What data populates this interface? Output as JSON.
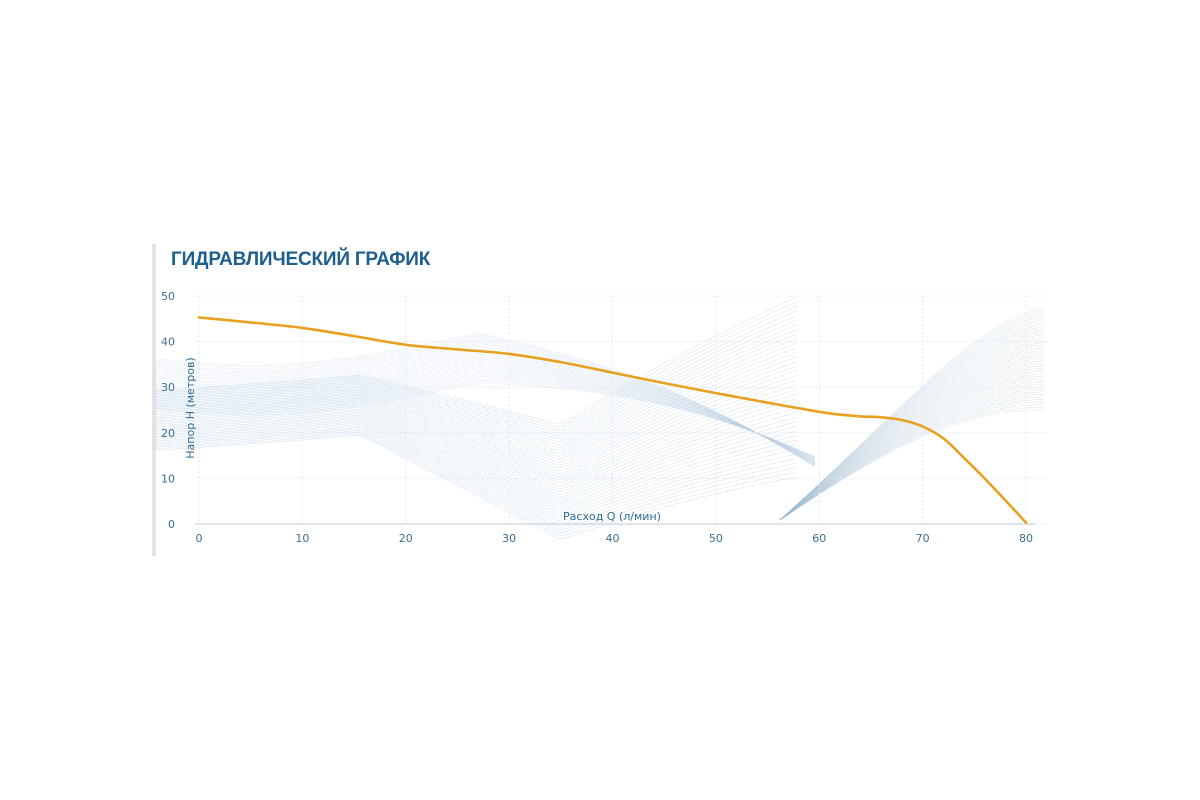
{
  "chart_data": {
    "type": "line",
    "title": "ГИДРАВЛИЧЕСКИЙ ГРАФИК",
    "xlabel": "Расход Q (л/мин)",
    "ylabel": "Напор Н (метров)",
    "xlim": [
      0,
      80
    ],
    "ylim": [
      0,
      50
    ],
    "x_ticks": [
      0,
      10,
      20,
      30,
      40,
      50,
      60,
      70,
      80
    ],
    "y_ticks": [
      0,
      10,
      20,
      30,
      40,
      50
    ],
    "grid": true,
    "series": [
      {
        "color": "#e8a020",
        "points": [
          [
            0,
            45.3
          ],
          [
            5,
            44.2
          ],
          [
            10,
            43.0
          ],
          [
            15,
            41.2
          ],
          [
            20,
            39.3
          ],
          [
            25,
            38.3
          ],
          [
            30,
            37.3
          ],
          [
            35,
            35.5
          ],
          [
            40,
            33.2
          ],
          [
            45,
            30.9
          ],
          [
            50,
            28.7
          ],
          [
            55,
            26.6
          ],
          [
            60,
            24.6
          ],
          [
            62,
            24.0
          ],
          [
            64,
            23.6
          ],
          [
            66,
            23.4
          ],
          [
            68,
            22.8
          ],
          [
            70,
            21.4
          ],
          [
            72,
            18.8
          ],
          [
            74,
            14.5
          ],
          [
            76,
            10.0
          ],
          [
            78,
            5.2
          ],
          [
            80,
            0.3
          ]
        ]
      }
    ]
  }
}
